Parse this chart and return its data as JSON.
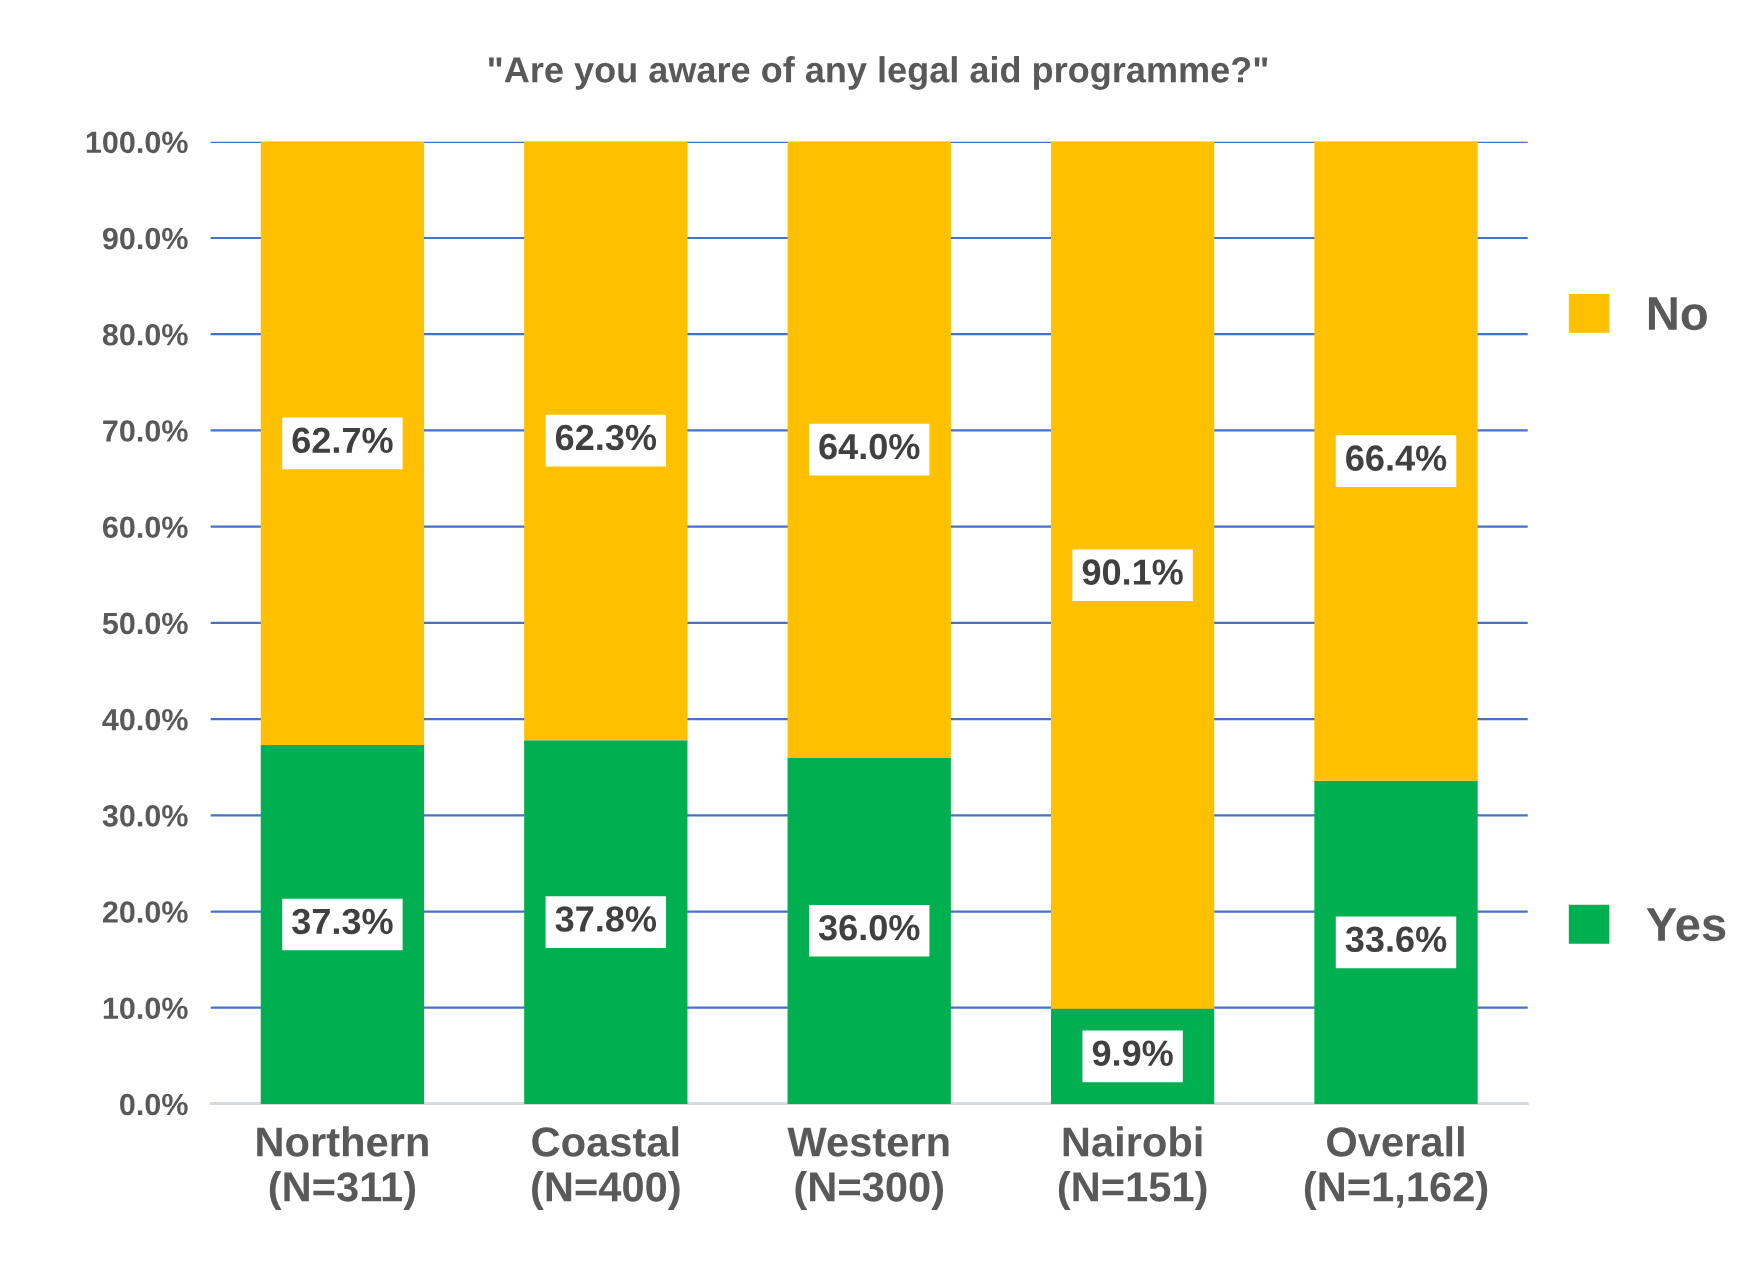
{
  "chart_data": {
    "type": "bar",
    "stacked": true,
    "title": "\"Are you aware of any legal aid programme?\"",
    "categories": [
      "Northern\n(N=311)",
      "Coastal\n(N=400)",
      "Western\n(N=300)",
      "Nairobi\n(N=151)",
      "Overall\n(N=1,162)"
    ],
    "series": [
      {
        "name": "Yes",
        "color": "#00b050",
        "values": [
          37.3,
          37.8,
          36.0,
          9.9,
          33.6
        ],
        "value_labels": [
          "37.3%",
          "37.8%",
          "36.0%",
          "9.9%",
          "33.6%"
        ]
      },
      {
        "name": "No",
        "color": "#ffc000",
        "values": [
          62.7,
          62.3,
          64.0,
          90.1,
          66.4
        ],
        "value_labels": [
          "62.7%",
          "62.3%",
          "64.0%",
          "90.1%",
          "66.4%"
        ]
      }
    ],
    "ylim": [
      0,
      100
    ],
    "yticks": [
      {
        "value": 0,
        "label": "0.0%"
      },
      {
        "value": 10,
        "label": "10.0%"
      },
      {
        "value": 20,
        "label": "20.0%"
      },
      {
        "value": 30,
        "label": "30.0%"
      },
      {
        "value": 40,
        "label": "40.0%"
      },
      {
        "value": 50,
        "label": "50.0%"
      },
      {
        "value": 60,
        "label": "60.0%"
      },
      {
        "value": 70,
        "label": "70.0%"
      },
      {
        "value": 80,
        "label": "80.0%"
      },
      {
        "value": 90,
        "label": "90.0%"
      },
      {
        "value": 100,
        "label": "100.0%"
      }
    ],
    "grid": "y",
    "legend": "right"
  }
}
